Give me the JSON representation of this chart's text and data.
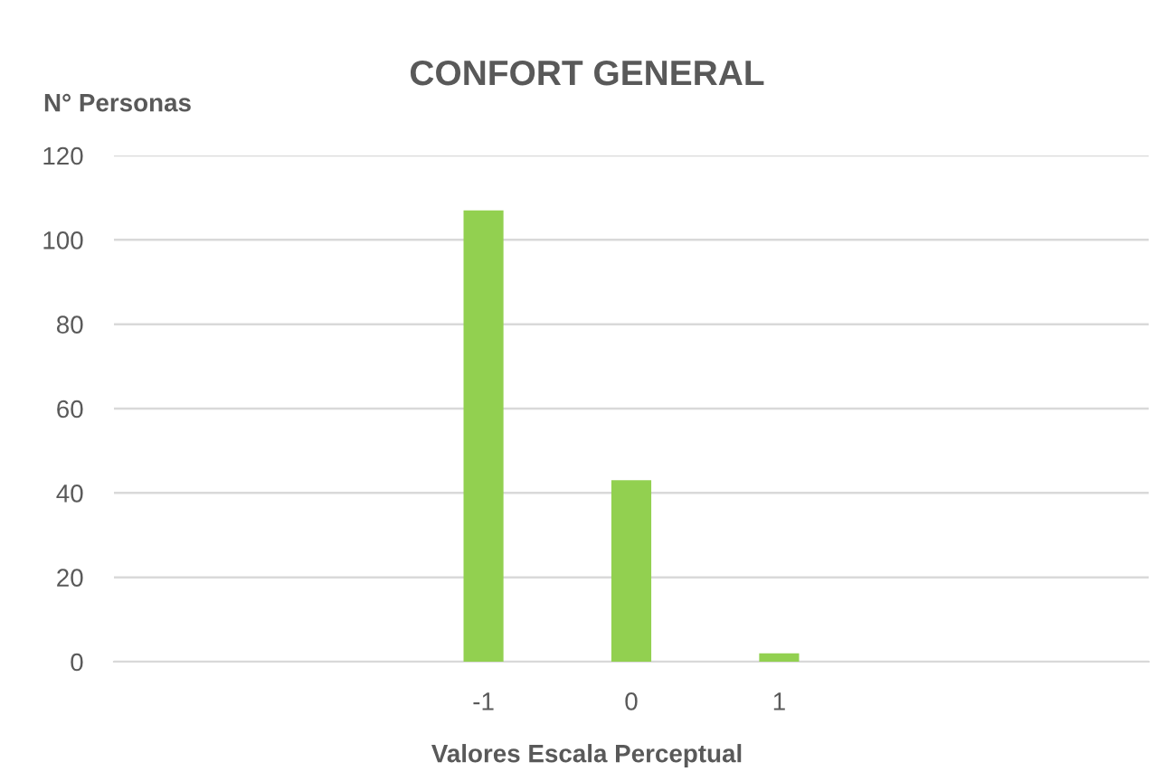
{
  "chart_data": {
    "type": "bar",
    "title": "CONFORT GENERAL",
    "ylabel": "N° Personas",
    "xlabel": "Valores Escala Perceptual",
    "categories": [
      null,
      null,
      "-1",
      "0",
      "1",
      null,
      null
    ],
    "values": [
      null,
      null,
      107,
      43,
      2,
      null,
      null
    ],
    "color": "#92d050",
    "ylim": [
      0,
      120
    ],
    "yticks": [
      0,
      20,
      40,
      60,
      80,
      100,
      120
    ],
    "grid": "y"
  }
}
